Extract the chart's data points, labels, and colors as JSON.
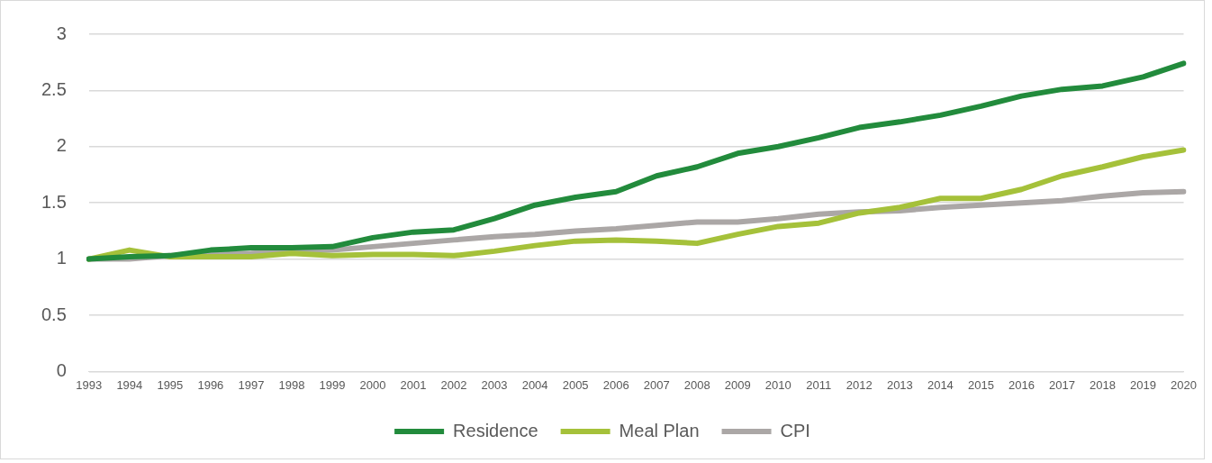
{
  "chart_data": {
    "type": "line",
    "categories": [
      "1993",
      "1994",
      "1995",
      "1996",
      "1997",
      "1998",
      "1999",
      "2000",
      "2001",
      "2002",
      "2003",
      "2004",
      "2005",
      "2006",
      "2007",
      "2008",
      "2009",
      "2010",
      "2011",
      "2012",
      "2013",
      "2014",
      "2015",
      "2016",
      "2017",
      "2018",
      "2019",
      "2020"
    ],
    "series": [
      {
        "name": "Residence",
        "color": "#228b3c",
        "values": [
          1.0,
          1.02,
          1.03,
          1.08,
          1.1,
          1.1,
          1.11,
          1.19,
          1.24,
          1.26,
          1.36,
          1.48,
          1.55,
          1.6,
          1.74,
          1.82,
          1.94,
          2.0,
          2.08,
          2.17,
          2.22,
          2.28,
          2.36,
          2.45,
          2.51,
          2.54,
          2.62,
          2.74
        ]
      },
      {
        "name": "Meal Plan",
        "color": "#a5c13a",
        "values": [
          1.0,
          1.08,
          1.02,
          1.02,
          1.02,
          1.05,
          1.03,
          1.04,
          1.04,
          1.03,
          1.07,
          1.12,
          1.16,
          1.17,
          1.16,
          1.14,
          1.22,
          1.29,
          1.32,
          1.41,
          1.46,
          1.54,
          1.54,
          1.62,
          1.74,
          1.82,
          1.91,
          1.97
        ]
      },
      {
        "name": "CPI",
        "color": "#aba7a6",
        "values": [
          1.0,
          1.0,
          1.03,
          1.04,
          1.05,
          1.07,
          1.08,
          1.11,
          1.14,
          1.17,
          1.2,
          1.22,
          1.25,
          1.27,
          1.3,
          1.33,
          1.33,
          1.36,
          1.4,
          1.42,
          1.43,
          1.46,
          1.48,
          1.5,
          1.52,
          1.56,
          1.59,
          1.6
        ]
      }
    ],
    "ylim": [
      0,
      3
    ],
    "yticks": [
      0,
      0.5,
      1,
      1.5,
      2,
      2.5,
      3
    ],
    "grid": "y",
    "legend": "bottom",
    "marker": "none",
    "line_style": "solid"
  }
}
